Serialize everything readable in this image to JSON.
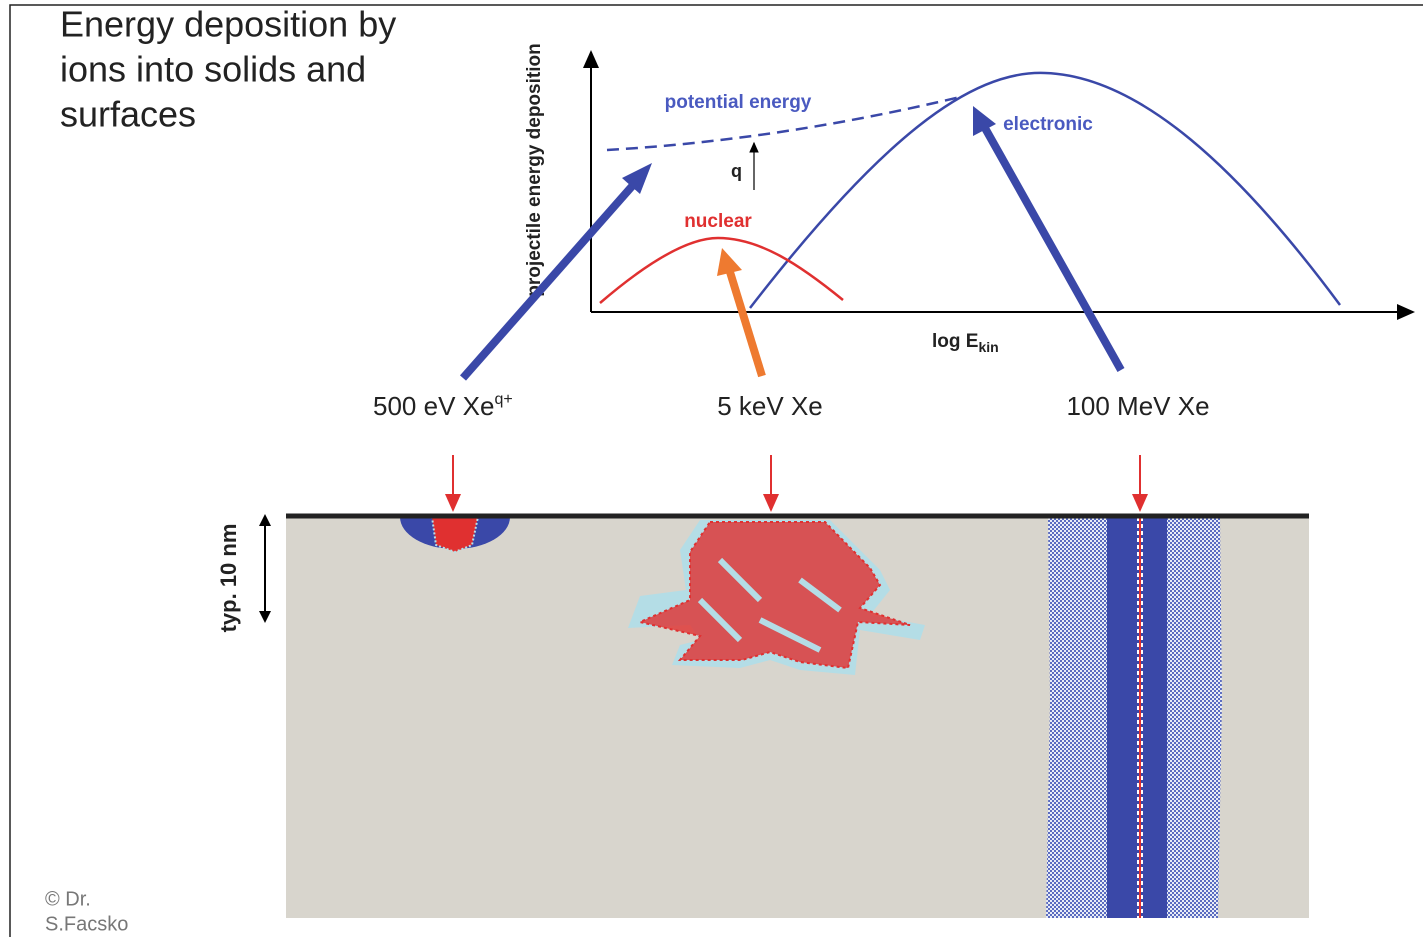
{
  "title_lines": [
    "Energy deposition by",
    "ions into solids and",
    "surfaces"
  ],
  "graph": {
    "y_axis_label": "projectile energy deposition",
    "x_axis_label": "log E",
    "x_axis_subscript": "kin",
    "curve_labels": {
      "potential": "potential energy",
      "electronic": "electronic",
      "nuclear": "nuclear",
      "charge": "q"
    }
  },
  "ions": [
    {
      "label": "500 eV Xe",
      "superscript": "q+"
    },
    {
      "label": "5 keV Xe"
    },
    {
      "label": "100 MeV Xe"
    }
  ],
  "depth_label": "typ. 10 nm",
  "copyright_lines": [
    "©  Dr.",
    "S.Facsko"
  ]
}
